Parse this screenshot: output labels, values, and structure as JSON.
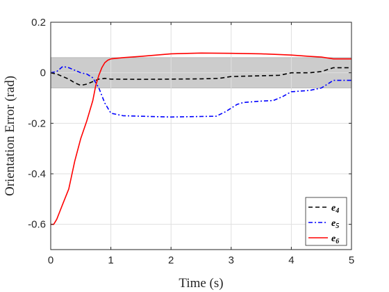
{
  "chart_data": {
    "type": "line",
    "xlabel": "Time (s)",
    "ylabel": "Orientation Error (rad)",
    "xlim": [
      0,
      5
    ],
    "ylim": [
      -0.7,
      0.2
    ],
    "xticks": [
      "0",
      "1",
      "2",
      "3",
      "4",
      "5"
    ],
    "yticks": [
      "-0.6",
      "-0.4",
      "-0.2",
      "0",
      "0.2"
    ],
    "grid": true,
    "legend_position": "bottom-right",
    "band": {
      "ymin": -0.06,
      "ymax": 0.06,
      "color": "#cccccc"
    },
    "series": [
      {
        "name": "e",
        "subscript": "4",
        "color": "#000000",
        "dash": "6,4",
        "x": [
          0,
          0.1,
          0.2,
          0.3,
          0.4,
          0.5,
          0.6,
          0.7,
          0.8,
          0.9,
          1.0,
          1.5,
          2.0,
          2.5,
          2.8,
          3.0,
          3.5,
          3.8,
          4.0,
          4.3,
          4.5,
          4.7,
          5.0
        ],
        "y": [
          0,
          -0.005,
          -0.015,
          -0.025,
          -0.04,
          -0.05,
          -0.045,
          -0.035,
          -0.025,
          -0.022,
          -0.025,
          -0.026,
          -0.025,
          -0.024,
          -0.022,
          -0.015,
          -0.012,
          -0.01,
          0.0,
          0.0,
          0.005,
          0.02,
          0.02
        ]
      },
      {
        "name": "e",
        "subscript": "5",
        "color": "#0000ff",
        "dash": "6,3,2,3",
        "x": [
          0,
          0.1,
          0.2,
          0.3,
          0.4,
          0.5,
          0.6,
          0.7,
          0.8,
          0.9,
          1.0,
          1.2,
          1.5,
          2.0,
          2.5,
          2.75,
          2.9,
          3.0,
          3.1,
          3.2,
          3.5,
          3.7,
          3.85,
          4.0,
          4.3,
          4.5,
          4.7,
          5.0
        ],
        "y": [
          0,
          0.005,
          0.025,
          0.02,
          0.01,
          0.0,
          -0.005,
          -0.02,
          -0.06,
          -0.12,
          -0.16,
          -0.17,
          -0.172,
          -0.175,
          -0.173,
          -0.172,
          -0.155,
          -0.14,
          -0.125,
          -0.118,
          -0.112,
          -0.11,
          -0.095,
          -0.075,
          -0.07,
          -0.06,
          -0.03,
          -0.03
        ]
      },
      {
        "name": "e",
        "subscript": "6",
        "color": "#ff0000",
        "dash": "",
        "x": [
          0,
          0.05,
          0.1,
          0.15,
          0.2,
          0.3,
          0.4,
          0.5,
          0.6,
          0.7,
          0.75,
          0.8,
          0.85,
          0.9,
          0.95,
          1.0,
          1.2,
          1.5,
          2.0,
          2.5,
          3.0,
          3.5,
          4.0,
          4.3,
          4.5,
          4.7,
          5.0
        ],
        "y": [
          -0.6,
          -0.6,
          -0.58,
          -0.55,
          -0.52,
          -0.46,
          -0.35,
          -0.26,
          -0.19,
          -0.11,
          -0.05,
          -0.01,
          0.02,
          0.04,
          0.05,
          0.055,
          0.06,
          0.065,
          0.075,
          0.078,
          0.077,
          0.075,
          0.07,
          0.065,
          0.062,
          0.055,
          0.055
        ]
      }
    ]
  }
}
